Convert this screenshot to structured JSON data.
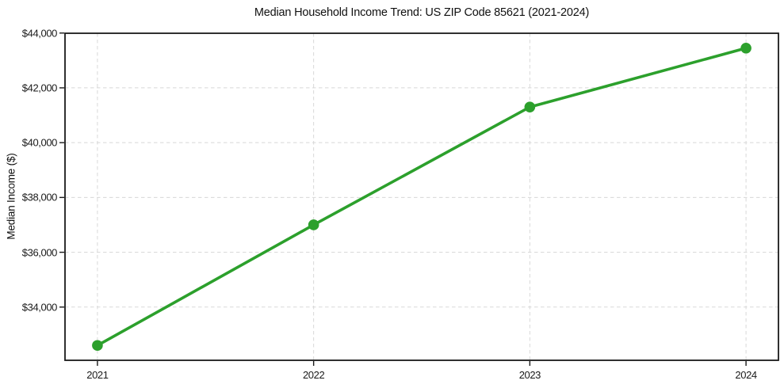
{
  "chart_data": {
    "type": "line",
    "title": "Median Household Income Trend: US ZIP Code 85621 (2021-2024)",
    "xlabel": "",
    "ylabel": "Median Income ($)",
    "x": [
      2021,
      2022,
      2023,
      2024
    ],
    "x_tick_labels": [
      "2021",
      "2022",
      "2023",
      "2024"
    ],
    "series": [
      {
        "name": "Median household income",
        "values": [
          32600,
          37000,
          41300,
          43450
        ],
        "color": "#2ca02c"
      }
    ],
    "y_ticks": [
      34000,
      36000,
      38000,
      40000,
      42000,
      44000
    ],
    "y_tick_labels": [
      "$34,000",
      "$36,000",
      "$38,000",
      "$40,000",
      "$42,000",
      "$44,000"
    ],
    "ylim": [
      32058,
      43992
    ],
    "xlim": [
      2020.85,
      2024.15
    ],
    "grid": true,
    "grid_style": "dashed",
    "grid_color": "#d8d8d8",
    "spine_color": "#1a1a1a",
    "background": "#ffffff",
    "line_width": 3.6,
    "marker_radius": 6.8,
    "legend": "none"
  }
}
